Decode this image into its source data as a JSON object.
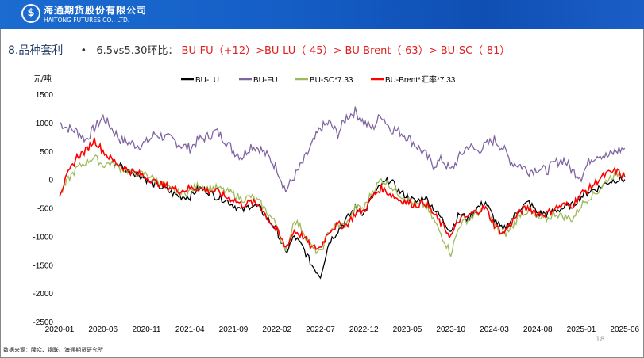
{
  "header": {
    "company_cn": "海通期货股份有限公司",
    "company_en": "HAITONG FUTURES CO., LTD.",
    "logo_glyph": "$"
  },
  "title": {
    "section": "8.品种套利",
    "bullet": "•",
    "compare_label": "6.5vs5.30环比：",
    "compare_value": "BU-FU（+12）>BU-LU（-45）> BU-Brent（-63）> BU-SC（-81）"
  },
  "footer": {
    "source": "数据来源：隆众、钢联、海通期货研究所",
    "page_number": "18"
  },
  "chart_data": {
    "type": "line",
    "ylabel": "元/吨",
    "ylim": [
      -2500,
      1500
    ],
    "yticks": [
      1500,
      1000,
      500,
      0,
      -500,
      -1000,
      -1500,
      -2000,
      -2500
    ],
    "xticks": [
      "2020-01",
      "2020-06",
      "2020-11",
      "2021-04",
      "2021-09",
      "2022-02",
      "2022-07",
      "2022-12",
      "2023-05",
      "2023-10",
      "2024-03",
      "2024-08",
      "2025-01",
      "2025-06"
    ],
    "legend_position": "top",
    "grid": false,
    "x": [
      "2020-01",
      "2020-02",
      "2020-03",
      "2020-04",
      "2020-05",
      "2020-06",
      "2020-07",
      "2020-08",
      "2020-09",
      "2020-10",
      "2020-11",
      "2020-12",
      "2021-01",
      "2021-02",
      "2021-03",
      "2021-04",
      "2021-05",
      "2021-06",
      "2021-07",
      "2021-08",
      "2021-09",
      "2021-10",
      "2021-11",
      "2021-12",
      "2022-01",
      "2022-02",
      "2022-03",
      "2022-04",
      "2022-05",
      "2022-06",
      "2022-07",
      "2022-08",
      "2022-09",
      "2022-10",
      "2022-11",
      "2022-12",
      "2023-01",
      "2023-02",
      "2023-03",
      "2023-04",
      "2023-05",
      "2023-06",
      "2023-07",
      "2023-08",
      "2023-09",
      "2023-10",
      "2023-11",
      "2023-12",
      "2024-01",
      "2024-02",
      "2024-03",
      "2024-04",
      "2024-05",
      "2024-06",
      "2024-07",
      "2024-08",
      "2024-09",
      "2024-10",
      "2024-11",
      "2024-12",
      "2025-01",
      "2025-02",
      "2025-03",
      "2025-04",
      "2025-05",
      "2025-06"
    ],
    "series": [
      {
        "name": "BU-LU",
        "color": "#000000",
        "values": [
          null,
          null,
          null,
          null,
          null,
          null,
          300,
          250,
          150,
          100,
          0,
          -100,
          -150,
          -250,
          -300,
          -300,
          -150,
          -200,
          -300,
          -350,
          -450,
          -550,
          -450,
          -500,
          -700,
          -900,
          -1300,
          -1000,
          -1200,
          -1500,
          -1700,
          -1100,
          -900,
          -700,
          -500,
          -600,
          -300,
          -100,
          0,
          -200,
          -300,
          -400,
          -300,
          -500,
          -700,
          -900,
          -600,
          -700,
          -500,
          -400,
          -700,
          -900,
          -700,
          -500,
          -400,
          -600,
          -600,
          -550,
          -500,
          -450,
          -300,
          -200,
          -150,
          -50,
          0,
          0
        ]
      },
      {
        "name": "BU-FU",
        "color": "#8064a2",
        "values": [
          1000,
          900,
          850,
          700,
          900,
          1100,
          900,
          700,
          650,
          600,
          650,
          800,
          750,
          700,
          600,
          550,
          700,
          750,
          850,
          700,
          500,
          400,
          600,
          550,
          400,
          200,
          -200,
          50,
          300,
          600,
          900,
          1000,
          800,
          1100,
          1200,
          1000,
          900,
          1150,
          900,
          850,
          750,
          600,
          450,
          250,
          350,
          150,
          400,
          600,
          500,
          600,
          700,
          550,
          300,
          250,
          150,
          200,
          150,
          300,
          350,
          150,
          50,
          350,
          450,
          400,
          500,
          550
        ]
      },
      {
        "name": "BU-SC*7.33",
        "color": "#9bbb59",
        "values": [
          -300,
          0,
          200,
          300,
          400,
          250,
          300,
          200,
          150,
          100,
          100,
          0,
          -100,
          -200,
          -250,
          -200,
          -100,
          -150,
          -150,
          -200,
          -250,
          -350,
          -300,
          -400,
          -600,
          -800,
          -1300,
          -700,
          -900,
          -1200,
          -1300,
          -900,
          -800,
          -800,
          -500,
          -500,
          -200,
          0,
          -100,
          -250,
          -350,
          -450,
          -450,
          -700,
          -1000,
          -1300,
          -800,
          -700,
          -600,
          -500,
          -800,
          -1000,
          -850,
          -600,
          -550,
          -700,
          -700,
          -600,
          -650,
          -700,
          -450,
          -300,
          -200,
          0,
          100,
          100
        ]
      },
      {
        "name": "BU-Brent*汇率*7.33",
        "color": "#ff0000",
        "values": [
          -250,
          100,
          400,
          500,
          700,
          500,
          350,
          250,
          150,
          100,
          50,
          -50,
          -100,
          -150,
          -200,
          -150,
          -150,
          -200,
          -200,
          -300,
          -350,
          -450,
          -400,
          -450,
          -700,
          -900,
          -1200,
          -900,
          -1000,
          -1200,
          -1200,
          -900,
          -800,
          -800,
          -600,
          -550,
          -300,
          -150,
          -250,
          -350,
          -400,
          -450,
          -400,
          -600,
          -800,
          -1000,
          -700,
          -650,
          -550,
          -500,
          -800,
          -950,
          -750,
          -550,
          -500,
          -600,
          -600,
          -500,
          -450,
          -450,
          -250,
          -150,
          0,
          100,
          150,
          50
        ]
      }
    ]
  }
}
